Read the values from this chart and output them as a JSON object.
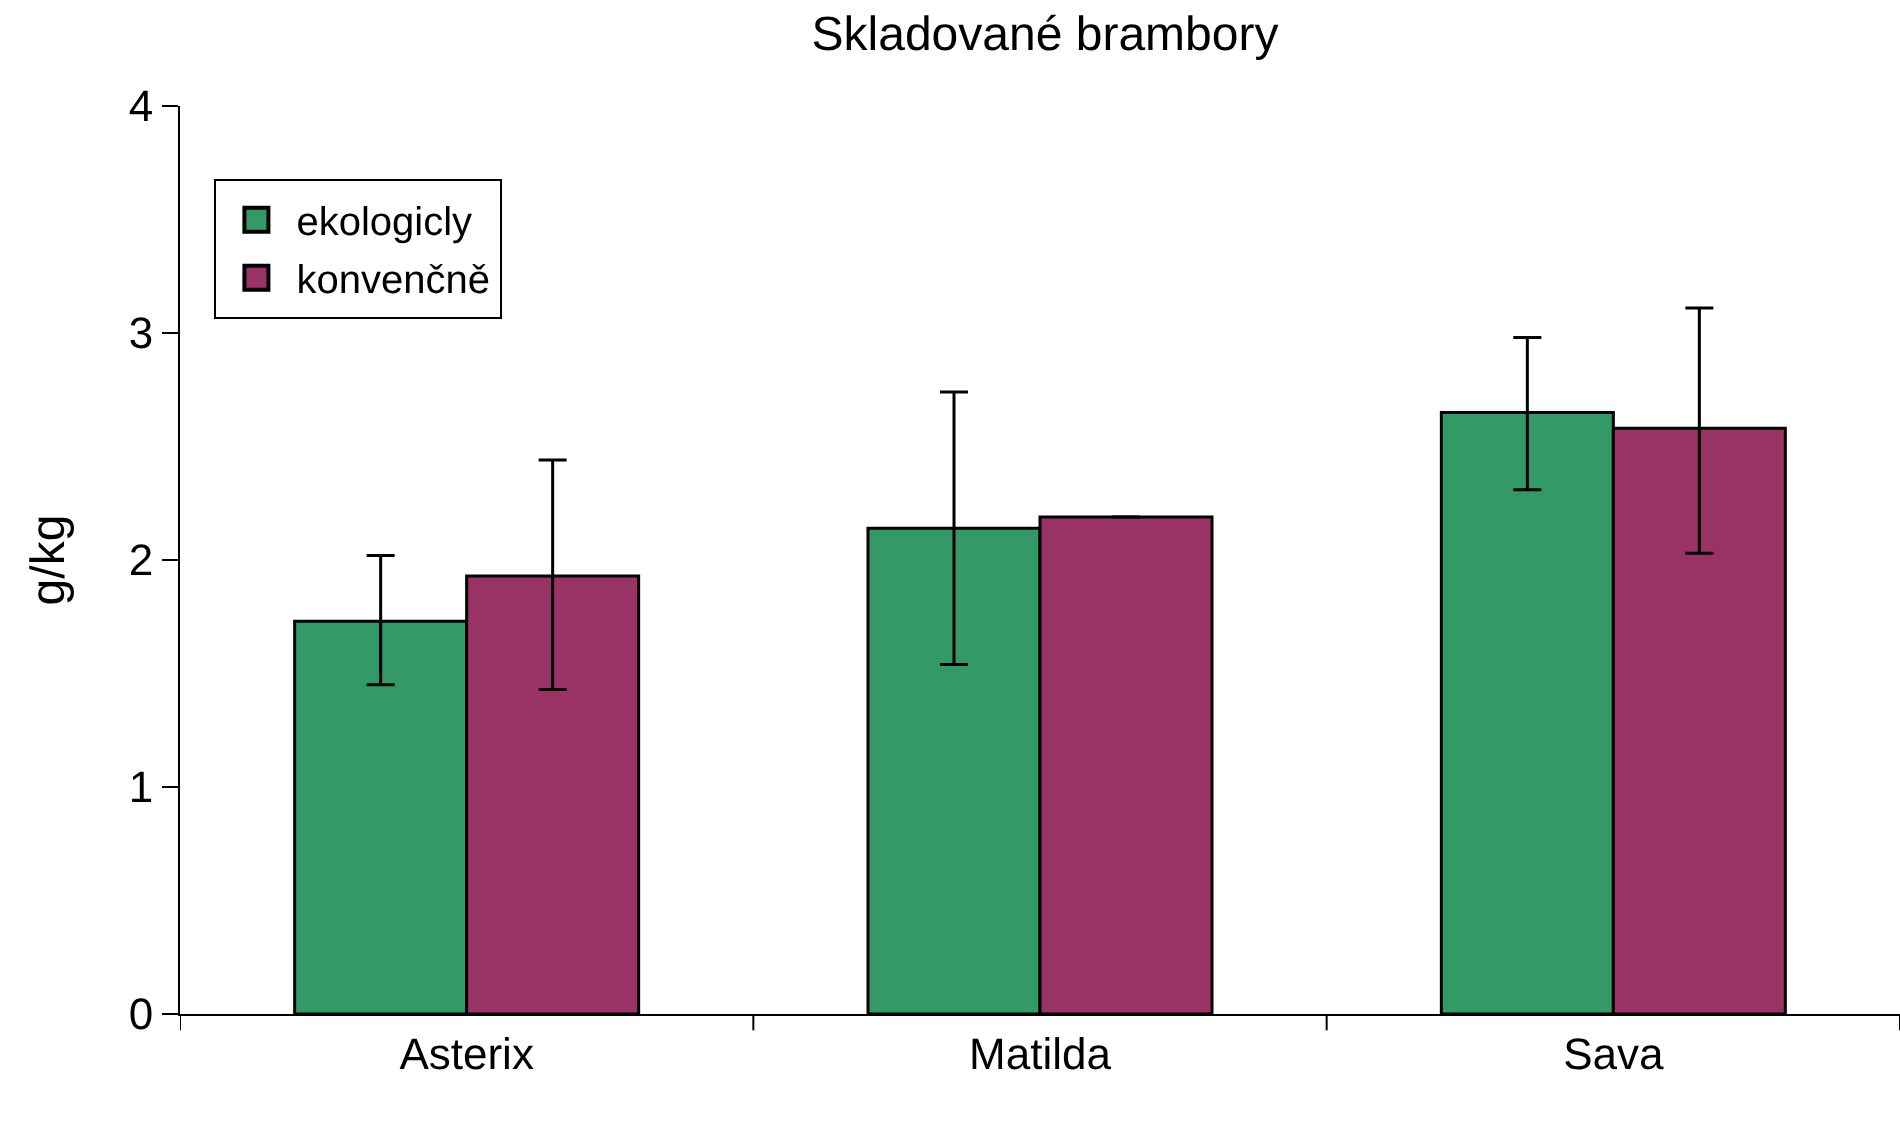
{
  "chart_data": {
    "type": "bar",
    "title": "Skladované brambory",
    "ylabel": "g/kg",
    "categories": [
      "Asterix",
      "Matilda",
      "Sava"
    ],
    "series": [
      {
        "name": "ekologicly",
        "color": "#339966",
        "values": [
          1.73,
          2.14,
          2.65
        ],
        "errors": [
          [
            1.45,
            2.02
          ],
          [
            1.54,
            2.74
          ],
          [
            2.31,
            2.98
          ]
        ]
      },
      {
        "name": "konvenčně",
        "color": "#993366",
        "values": [
          1.93,
          2.19,
          2.58
        ],
        "errors": [
          [
            1.43,
            2.44
          ],
          null,
          [
            2.03,
            3.11
          ]
        ]
      }
    ],
    "ylim": [
      0,
      4
    ],
    "yticks": [
      0,
      1,
      2,
      3,
      4
    ],
    "grid": false,
    "legend": "top left"
  }
}
